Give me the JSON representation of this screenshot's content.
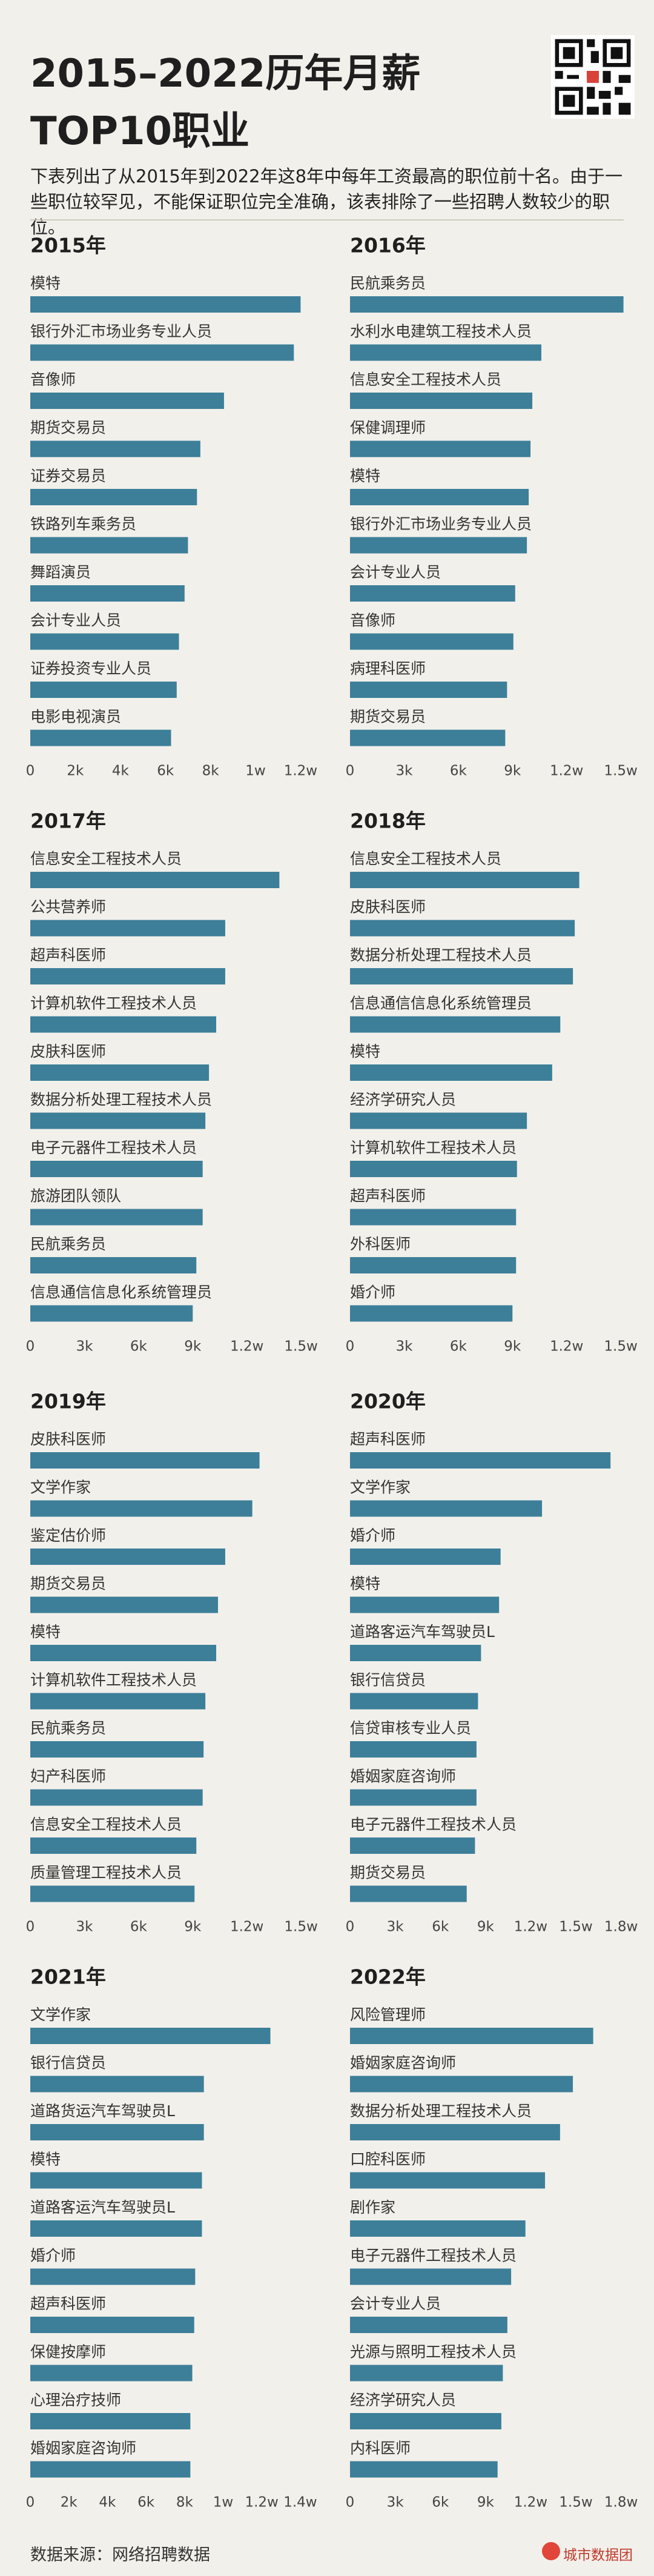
{
  "header": {
    "title_line1": "2015–2022历年月薪",
    "title_line2": "TOP10职业",
    "description": "下表列出了从2015年到2022年这8年中每年工资最高的职位前十名。由于一些职位较罕见，不能保证职位完全准确，该表排除了一些招聘人数较少的职位。"
  },
  "chart_data": [
    {
      "type": "bar",
      "orientation": "horizontal",
      "title": "2015年",
      "color": "#3d7f99",
      "categories": [
        "模特",
        "银行外汇市场业务专业人员",
        "音像师",
        "期货交易员",
        "证券交易员",
        "铁路列车乘务员",
        "舞蹈演员",
        "会计专业人员",
        "证券投资专业人员",
        "电影电视演员"
      ],
      "values": [
        12000,
        11700,
        8600,
        7550,
        7400,
        7000,
        6850,
        6600,
        6500,
        6250
      ],
      "xlim": [
        0,
        12500
      ],
      "xticks": [
        0,
        {
          "value": 2000,
          "label": "2k"
        },
        {
          "value": 4000,
          "label": "4k"
        },
        {
          "value": 6000,
          "label": "6k"
        },
        {
          "value": 8000,
          "label": "8k"
        },
        {
          "value": 10000,
          "label": "1w"
        },
        {
          "value": 12000,
          "label": "1.2w"
        }
      ]
    },
    {
      "type": "bar",
      "orientation": "horizontal",
      "title": "2016年",
      "color": "#3d7f99",
      "categories": [
        "民航乘务员",
        "水利水电建筑工程技术人员",
        "信息安全工程技术人员",
        "保健调理师",
        "模特",
        "银行外汇市场业务专业人员",
        "会计专业人员",
        "音像师",
        "病理科医师",
        "期货交易员"
      ],
      "values": [
        15150,
        10600,
        10100,
        10000,
        9900,
        9800,
        9150,
        9050,
        8700,
        8600
      ],
      "xlim": [
        0,
        15600
      ],
      "xticks": [
        0,
        {
          "value": 3000,
          "label": "3k"
        },
        {
          "value": 6000,
          "label": "6k"
        },
        {
          "value": 9000,
          "label": "9k"
        },
        {
          "value": 12000,
          "label": "1.2w"
        },
        {
          "value": 15000,
          "label": "1.5w"
        }
      ]
    },
    {
      "type": "bar",
      "orientation": "horizontal",
      "title": "2017年",
      "color": "#3d7f99",
      "categories": [
        "信息安全工程技术人员",
        "公共营养师",
        "超声科医师",
        "计算机软件工程技术人员",
        "皮肤科医师",
        "数据分析处理工程技术人员",
        "电子元器件工程技术人员",
        "旅游团队领队",
        "民航乘务员",
        "信息通信信息化系统管理员"
      ],
      "values": [
        13800,
        10800,
        10800,
        10300,
        9900,
        9700,
        9550,
        9550,
        9200,
        9000
      ],
      "xlim": [
        0,
        15600
      ],
      "xticks": [
        0,
        {
          "value": 3000,
          "label": "3k"
        },
        {
          "value": 6000,
          "label": "6k"
        },
        {
          "value": 9000,
          "label": "9k"
        },
        {
          "value": 12000,
          "label": "1.2w"
        },
        {
          "value": 15000,
          "label": "1.5w"
        }
      ]
    },
    {
      "type": "bar",
      "orientation": "horizontal",
      "title": "2018年",
      "color": "#3d7f99",
      "categories": [
        "信息安全工程技术人员",
        "皮肤科医师",
        "数据分析处理工程技术人员",
        "信息通信信息化系统管理员",
        "模特",
        "经济学研究人员",
        "计算机软件工程技术人员",
        "超声科医师",
        "外科医师",
        "婚介师"
      ],
      "values": [
        12700,
        12450,
        12350,
        11650,
        11200,
        9800,
        9250,
        9200,
        9200,
        9000
      ],
      "xlim": [
        0,
        15600
      ],
      "xticks": [
        0,
        {
          "value": 3000,
          "label": "3k"
        },
        {
          "value": 6000,
          "label": "6k"
        },
        {
          "value": 9000,
          "label": "9k"
        },
        {
          "value": 12000,
          "label": "1.2w"
        },
        {
          "value": 15000,
          "label": "1.5w"
        }
      ]
    },
    {
      "type": "bar",
      "orientation": "horizontal",
      "title": "2019年",
      "color": "#3d7f99",
      "categories": [
        "皮肤科医师",
        "文学作家",
        "鉴定估价师",
        "期货交易员",
        "模特",
        "计算机软件工程技术人员",
        "民航乘务员",
        "妇产科医师",
        "信息安全工程技术人员",
        "质量管理工程技术人员"
      ],
      "values": [
        12700,
        12300,
        10800,
        10400,
        10300,
        9700,
        9600,
        9550,
        9200,
        9100
      ],
      "xlim": [
        0,
        15600
      ],
      "xticks": [
        0,
        {
          "value": 3000,
          "label": "3k"
        },
        {
          "value": 6000,
          "label": "6k"
        },
        {
          "value": 9000,
          "label": "9k"
        },
        {
          "value": 12000,
          "label": "1.2w"
        },
        {
          "value": 15000,
          "label": "1.5w"
        }
      ]
    },
    {
      "type": "bar",
      "orientation": "horizontal",
      "title": "2020年",
      "color": "#3d7f99",
      "categories": [
        "超声科医师",
        "文学作家",
        "婚介师",
        "模特",
        "道路客运汽车驾驶员L",
        "银行信贷员",
        "信贷审核专业人员",
        "婚姻家庭咨询师",
        "电子元器件工程技术人员",
        "期货交易员"
      ],
      "values": [
        17300,
        12750,
        10000,
        9900,
        8700,
        8500,
        8400,
        8400,
        8300,
        7750
      ],
      "xlim": [
        0,
        18700
      ],
      "xticks": [
        0,
        {
          "value": 3000,
          "label": "3k"
        },
        {
          "value": 6000,
          "label": "6k"
        },
        {
          "value": 9000,
          "label": "9k"
        },
        {
          "value": 12000,
          "label": "1.2w"
        },
        {
          "value": 15000,
          "label": "1.5w"
        },
        {
          "value": 18000,
          "label": "1.8w"
        }
      ]
    },
    {
      "type": "bar",
      "orientation": "horizontal",
      "title": "2021年",
      "color": "#3d7f99",
      "categories": [
        "文学作家",
        "银行信贷员",
        "道路货运汽车驾驶员L",
        "模特",
        "道路客运汽车驾驶员L",
        "婚介师",
        "超声科医师",
        "保健按摩师",
        "心理治疗技师",
        "婚姻家庭咨询师"
      ],
      "values": [
        12450,
        9000,
        9000,
        8900,
        8900,
        8550,
        8500,
        8400,
        8300,
        8300
      ],
      "xlim": [
        0,
        14600
      ],
      "xticks": [
        0,
        {
          "value": 2000,
          "label": "2k"
        },
        {
          "value": 4000,
          "label": "4k"
        },
        {
          "value": 6000,
          "label": "6k"
        },
        {
          "value": 8000,
          "label": "8k"
        },
        {
          "value": 10000,
          "label": "1w"
        },
        {
          "value": 12000,
          "label": "1.2w"
        },
        {
          "value": 14000,
          "label": "1.4w"
        }
      ]
    },
    {
      "type": "bar",
      "orientation": "horizontal",
      "title": "2022年",
      "color": "#3d7f99",
      "categories": [
        "风险管理师",
        "婚姻家庭咨询师",
        "数据分析处理工程技术人员",
        "口腔科医师",
        "剧作家",
        "电子元器件工程技术人员",
        "会计专业人员",
        "光源与照明工程技术人员",
        "经济学研究人员",
        "内科医师"
      ],
      "values": [
        16150,
        14800,
        13950,
        12950,
        11650,
        10700,
        10450,
        10150,
        10050,
        9800
      ],
      "xlim": [
        0,
        18700
      ],
      "xticks": [
        0,
        {
          "value": 3000,
          "label": "3k"
        },
        {
          "value": 6000,
          "label": "6k"
        },
        {
          "value": 9000,
          "label": "9k"
        },
        {
          "value": 12000,
          "label": "1.2w"
        },
        {
          "value": 15000,
          "label": "1.5w"
        },
        {
          "value": 18000,
          "label": "1.8w"
        }
      ]
    }
  ],
  "footer": {
    "source": "数据来源：网络招聘数据",
    "brand": "城市数据团"
  }
}
